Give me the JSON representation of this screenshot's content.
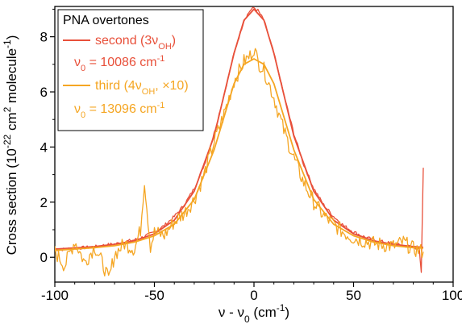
{
  "chart_data": {
    "type": "line",
    "legend": {
      "title": "PNA overtones",
      "placement": "top-left",
      "entries": [
        {
          "label_prefix": "second (3ν",
          "label_sub": "OH",
          "label_suffix": ")",
          "nu0_prefix": "ν",
          "nu0_sub": "0",
          "nu0_rest": " = 10086 cm",
          "nu0_sup": "-1",
          "color": "#e8503a"
        },
        {
          "label_prefix": "third (4ν",
          "label_sub": "OH",
          "label_suffix": ", ×10)",
          "nu0_prefix": "ν",
          "nu0_sub": "0",
          "nu0_rest": " = 13096 cm",
          "nu0_sup": "-1",
          "color": "#f5a623"
        }
      ]
    },
    "xaxis": {
      "label_prefix": "ν - ν",
      "label_sub": "0",
      "label_rest": " (cm",
      "label_sup": "-1",
      "label_end": ")",
      "range": [
        -100,
        100
      ],
      "ticks": [
        "-100",
        "-50",
        "0",
        "50",
        "100"
      ]
    },
    "yaxis": {
      "label_prefix": "Cross section (10",
      "label_sup1": "-22",
      "label_mid": " cm",
      "label_sup2": "2",
      "label_mid2": " molecule",
      "label_sup3": "-1",
      "label_end": ")",
      "range": [
        -0.9,
        9.1
      ],
      "ticks": [
        "0",
        "2",
        "4",
        "6",
        "8"
      ]
    },
    "series": [
      {
        "color": "#e8503a",
        "style": "noisy",
        "x": [
          -100,
          -95,
          -90,
          -85,
          -80,
          -75,
          -70,
          -65,
          -60,
          -55,
          -50,
          -45,
          -40,
          -35,
          -30,
          -25,
          -20,
          -15,
          -10,
          -5,
          -2,
          0,
          2,
          5,
          10,
          15,
          20,
          25,
          30,
          35,
          40,
          45,
          50,
          55,
          60,
          65,
          70,
          75,
          80,
          83,
          84,
          85
        ],
        "y": [
          0.28,
          0.29,
          0.33,
          0.35,
          0.38,
          0.44,
          0.48,
          0.56,
          0.63,
          0.75,
          0.92,
          1.15,
          1.48,
          1.9,
          2.5,
          3.35,
          4.5,
          5.9,
          7.4,
          8.6,
          8.95,
          9.05,
          8.95,
          8.6,
          7.4,
          5.9,
          4.5,
          3.35,
          2.5,
          1.9,
          1.48,
          1.15,
          0.92,
          0.75,
          0.63,
          0.56,
          0.48,
          0.42,
          0.38,
          0.3,
          -0.6,
          3.25
        ]
      },
      {
        "color": "#e8503a",
        "style": "smooth",
        "x": [
          -100,
          -90,
          -80,
          -70,
          -60,
          -50,
          -40,
          -30,
          -20,
          -10,
          -5,
          0,
          5,
          10,
          20,
          30,
          40,
          50,
          60,
          70,
          80,
          85
        ],
        "y": [
          0.3,
          0.34,
          0.39,
          0.47,
          0.6,
          0.85,
          1.35,
          2.4,
          4.4,
          7.4,
          8.6,
          9.0,
          8.6,
          7.4,
          4.4,
          2.4,
          1.35,
          0.85,
          0.6,
          0.47,
          0.39,
          0.36
        ]
      },
      {
        "color": "#f5a623",
        "style": "noisy",
        "x": [
          -100,
          -95,
          -90,
          -85,
          -80,
          -75,
          -73,
          -70,
          -65,
          -60,
          -57,
          -55,
          -52,
          -50,
          -45,
          -40,
          -35,
          -30,
          -25,
          -20,
          -15,
          -10,
          -5,
          -2,
          0,
          2,
          5,
          10,
          15,
          20,
          25,
          30,
          35,
          40,
          45,
          50,
          55,
          60,
          65,
          70,
          75,
          80,
          85
        ],
        "y": [
          0.2,
          -0.3,
          0.6,
          -0.2,
          0.4,
          -0.4,
          -0.85,
          0.1,
          0.5,
          0.3,
          1.0,
          2.8,
          0.4,
          0.9,
          0.8,
          1.3,
          1.6,
          2.1,
          3.0,
          4.2,
          5.2,
          6.4,
          7.1,
          7.3,
          7.6,
          7.1,
          6.8,
          5.8,
          4.6,
          3.6,
          2.7,
          2.0,
          1.5,
          1.2,
          0.9,
          0.7,
          0.6,
          0.5,
          0.45,
          0.4,
          0.55,
          0.3,
          0.2
        ]
      },
      {
        "color": "#f5a623",
        "style": "smooth",
        "x": [
          -100,
          -90,
          -80,
          -70,
          -60,
          -50,
          -40,
          -30,
          -20,
          -10,
          -5,
          0,
          5,
          10,
          20,
          30,
          40,
          50,
          60,
          70,
          80,
          85
        ],
        "y": [
          0.25,
          0.3,
          0.35,
          0.42,
          0.55,
          0.78,
          1.2,
          2.1,
          3.9,
          6.3,
          7.0,
          7.2,
          7.0,
          6.3,
          3.9,
          2.1,
          1.2,
          0.78,
          0.55,
          0.42,
          0.35,
          0.33
        ]
      }
    ]
  }
}
